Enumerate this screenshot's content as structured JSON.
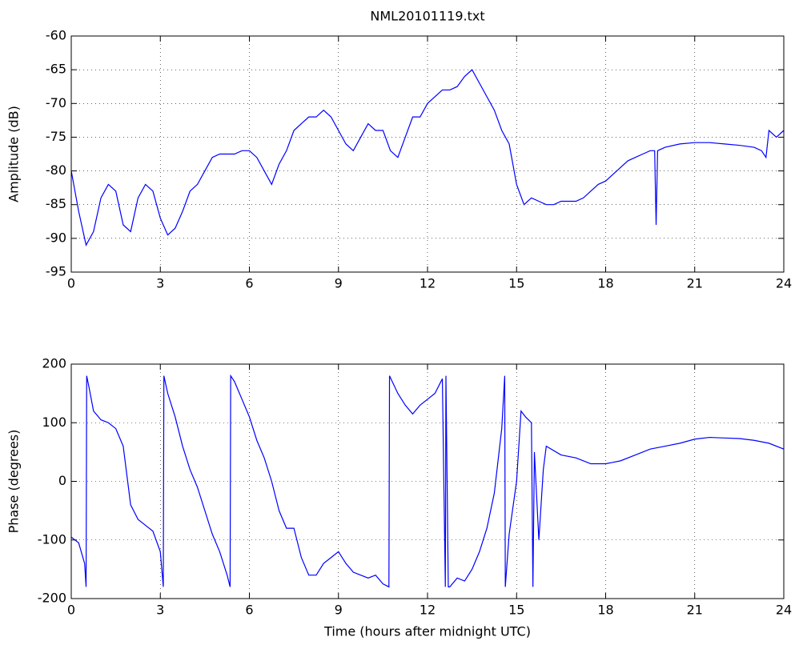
{
  "chart_data": [
    {
      "type": "line",
      "title": "NML20101119.txt",
      "ylabel": "Amplitude (dB)",
      "color": "#0000ff",
      "grid": true,
      "xlim": [
        0,
        24
      ],
      "ylim": [
        -95,
        -60
      ],
      "xticks": [
        0,
        3,
        6,
        9,
        12,
        15,
        18,
        21,
        24
      ],
      "yticks": [
        -95,
        -90,
        -85,
        -80,
        -75,
        -70,
        -65,
        -60
      ],
      "x": [
        0,
        0.25,
        0.5,
        0.75,
        1,
        1.25,
        1.5,
        1.75,
        2,
        2.25,
        2.5,
        2.75,
        3,
        3.25,
        3.5,
        3.75,
        4,
        4.25,
        4.5,
        4.75,
        5,
        5.25,
        5.5,
        5.75,
        6,
        6.25,
        6.5,
        6.75,
        7,
        7.25,
        7.5,
        7.75,
        8,
        8.25,
        8.5,
        8.75,
        9,
        9.25,
        9.5,
        9.75,
        10,
        10.25,
        10.5,
        10.75,
        11,
        11.25,
        11.5,
        11.75,
        12,
        12.25,
        12.5,
        12.75,
        13,
        13.25,
        13.5,
        13.75,
        14,
        14.25,
        14.5,
        14.75,
        15,
        15.25,
        15.5,
        15.75,
        16,
        16.25,
        16.5,
        16.75,
        17,
        17.25,
        17.5,
        17.75,
        18,
        18.25,
        18.5,
        18.75,
        19,
        19.25,
        19.5,
        19.65,
        19.7,
        19.75,
        20,
        20.5,
        21,
        21.5,
        22,
        22.5,
        23,
        23.25,
        23.4,
        23.5,
        23.75,
        24
      ],
      "values": [
        -80,
        -86,
        -91,
        -89,
        -84,
        -82,
        -83,
        -88,
        -89,
        -84,
        -82,
        -83,
        -87,
        -89.5,
        -88.5,
        -86,
        -83,
        -82,
        -80,
        -78,
        -77.5,
        -77.5,
        -77.5,
        -77,
        -77,
        -78,
        -80,
        -82,
        -79,
        -77,
        -74,
        -73,
        -72,
        -72,
        -71,
        -72,
        -74,
        -76,
        -77,
        -75,
        -73,
        -74,
        -74,
        -77,
        -78,
        -75,
        -72,
        -72,
        -70,
        -69,
        -68,
        -68,
        -67.5,
        -66,
        -65,
        -67,
        -69,
        -71,
        -74,
        -76,
        -82,
        -85,
        -84,
        -84.5,
        -85,
        -85,
        -84.5,
        -84.5,
        -84.5,
        -84,
        -83,
        -82,
        -81.5,
        -80.5,
        -79.5,
        -78.5,
        -78,
        -77.5,
        -77,
        -77,
        -88,
        -77,
        -76.5,
        -76,
        -75.8,
        -75.8,
        -76,
        -76.2,
        -76.5,
        -77,
        -78,
        -74,
        -75,
        -74
      ]
    },
    {
      "type": "line",
      "xlabel": "Time (hours after midnight UTC)",
      "ylabel": "Phase (degrees)",
      "color": "#0000ff",
      "grid": true,
      "xlim": [
        0,
        24
      ],
      "ylim": [
        -200,
        200
      ],
      "xticks": [
        0,
        3,
        6,
        9,
        12,
        15,
        18,
        21,
        24
      ],
      "yticks": [
        -200,
        -100,
        0,
        100,
        200
      ],
      "x": [
        0,
        0.25,
        0.45,
        0.5,
        0.52,
        0.6,
        0.75,
        1,
        1.25,
        1.5,
        1.75,
        1.9,
        2,
        2.25,
        2.5,
        2.75,
        3,
        3.1,
        3.12,
        3.25,
        3.5,
        3.75,
        4,
        4.25,
        4.5,
        4.75,
        5,
        5.25,
        5.35,
        5.37,
        5.5,
        5.75,
        6,
        6.25,
        6.5,
        6.75,
        7,
        7.25,
        7.5,
        7.75,
        8,
        8.25,
        8.5,
        8.75,
        9,
        9.25,
        9.5,
        9.75,
        10,
        10.25,
        10.5,
        10.7,
        10.72,
        11,
        11.25,
        11.5,
        11.75,
        12,
        12.25,
        12.5,
        12.6,
        12.62,
        12.7,
        12.75,
        13,
        13.25,
        13.5,
        13.75,
        14,
        14.25,
        14.5,
        14.6,
        14.62,
        14.75,
        15,
        15.15,
        15.3,
        15.5,
        15.55,
        15.6,
        15.75,
        15.9,
        16,
        16.5,
        17,
        17.5,
        18,
        18.5,
        19,
        19.5,
        20,
        20.5,
        21,
        21.5,
        22,
        22.5,
        23,
        23.5,
        24
      ],
      "values": [
        -95,
        -105,
        -140,
        -180,
        180,
        160,
        120,
        105,
        100,
        90,
        60,
        0,
        -40,
        -65,
        -75,
        -85,
        -120,
        -180,
        180,
        150,
        110,
        60,
        20,
        -10,
        -50,
        -90,
        -120,
        -160,
        -180,
        180,
        170,
        140,
        110,
        70,
        40,
        0,
        -50,
        -80,
        -80,
        -130,
        -160,
        -160,
        -140,
        -130,
        -120,
        -140,
        -155,
        -160,
        -165,
        -160,
        -175,
        -180,
        180,
        150,
        130,
        115,
        130,
        140,
        150,
        175,
        -180,
        180,
        -180,
        -180,
        -165,
        -170,
        -150,
        -120,
        -80,
        -20,
        90,
        180,
        -180,
        -90,
        0,
        120,
        110,
        100,
        -180,
        50,
        -100,
        20,
        60,
        45,
        40,
        30,
        30,
        35,
        45,
        55,
        60,
        65,
        72,
        75,
        74,
        73,
        70,
        65,
        55
      ]
    }
  ]
}
